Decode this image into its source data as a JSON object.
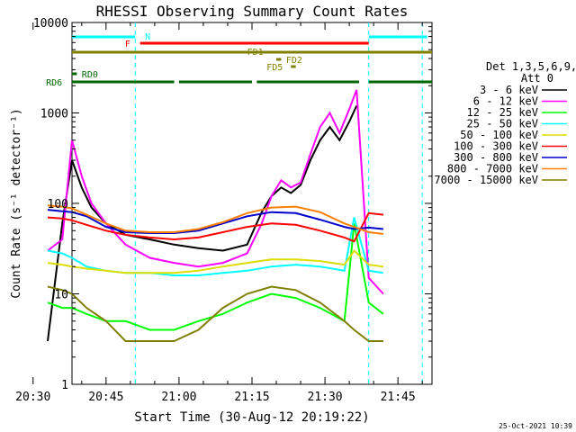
{
  "chart_data": {
    "type": "line",
    "title": "RHESSI Observing Summary Count Rates",
    "xlabel": "Start Time (30-Aug-12 20:19:22)",
    "ylabel": "Count Rate (s⁻¹ detector⁻¹)",
    "yscale": "log",
    "ylim": [
      1,
      10000
    ],
    "xlim_min": [
      19,
      93
    ],
    "x_unit": "minutes after 20:19",
    "x_ticks": [
      {
        "value": 11,
        "label": "20:30"
      },
      {
        "value": 26,
        "label": "20:45"
      },
      {
        "value": 41,
        "label": "21:00"
      },
      {
        "value": 56,
        "label": "21:15"
      },
      {
        "value": 71,
        "label": "21:30"
      },
      {
        "value": 86,
        "label": "21:45"
      }
    ],
    "y_ticks": [
      {
        "value": 1,
        "label": "1"
      },
      {
        "value": 10,
        "label": "10"
      },
      {
        "value": 100,
        "label": "100"
      },
      {
        "value": 1000,
        "label": "1000"
      },
      {
        "value": 10000,
        "label": "10000"
      }
    ],
    "legend": {
      "placement": "right",
      "header": [
        "Det 1,3,5,6,9,",
        "Att 0"
      ]
    },
    "series": [
      {
        "name": "3 - 6 keV",
        "color": "#000000",
        "x": [
          14,
          17,
          19,
          21,
          23,
          26,
          30,
          35,
          40,
          45,
          50,
          55,
          58,
          60,
          62,
          64,
          66,
          68,
          70,
          72,
          74,
          76,
          77.5
        ],
        "y": [
          3,
          60,
          300,
          150,
          90,
          60,
          45,
          40,
          35,
          32,
          30,
          35,
          80,
          120,
          150,
          130,
          160,
          300,
          500,
          700,
          500,
          800,
          1200
        ]
      },
      {
        "name": "6 - 12 keV",
        "color": "#ff00ff",
        "x": [
          14,
          17,
          19,
          21,
          23,
          26,
          30,
          35,
          40,
          45,
          50,
          55,
          58,
          60,
          62,
          64,
          66,
          68,
          70,
          72,
          74,
          76,
          77.5,
          80,
          83
        ],
        "y": [
          30,
          40,
          500,
          200,
          100,
          60,
          35,
          25,
          22,
          20,
          22,
          28,
          60,
          120,
          180,
          150,
          170,
          350,
          700,
          1000,
          600,
          1100,
          1800,
          15,
          10
        ]
      },
      {
        "name": "12 - 25 keV",
        "color": "#00ff00",
        "x": [
          14,
          17,
          19,
          22,
          26,
          30,
          35,
          40,
          45,
          50,
          55,
          60,
          65,
          70,
          75,
          77,
          80,
          83
        ],
        "y": [
          8,
          7,
          7,
          6,
          5,
          5,
          4,
          4,
          5,
          6,
          8,
          10,
          9,
          7,
          5,
          60,
          8,
          6
        ]
      },
      {
        "name": "25 - 50 keV",
        "color": "#00ffff",
        "x": [
          14,
          17,
          19,
          22,
          26,
          30,
          35,
          40,
          45,
          50,
          55,
          60,
          65,
          70,
          75,
          77,
          80,
          83
        ],
        "y": [
          30,
          28,
          25,
          20,
          18,
          17,
          17,
          16,
          16,
          17,
          18,
          20,
          21,
          20,
          18,
          70,
          18,
          17
        ]
      },
      {
        "name": "50 - 100 keV",
        "color": "#dddd00",
        "x": [
          14,
          17,
          19,
          22,
          26,
          30,
          35,
          40,
          45,
          50,
          55,
          60,
          65,
          70,
          75,
          77,
          80,
          83
        ],
        "y": [
          22,
          21,
          20,
          19,
          18,
          17,
          17,
          17,
          18,
          20,
          22,
          24,
          24,
          23,
          21,
          30,
          21,
          20
        ]
      },
      {
        "name": "100 - 300 keV",
        "color": "#ff0000",
        "x": [
          14,
          17,
          19,
          22,
          26,
          30,
          35,
          40,
          45,
          50,
          55,
          60,
          65,
          70,
          75,
          77,
          80,
          83
        ],
        "y": [
          70,
          68,
          65,
          58,
          50,
          45,
          42,
          40,
          42,
          48,
          55,
          60,
          58,
          50,
          42,
          38,
          78,
          75
        ]
      },
      {
        "name": "300 - 800 keV",
        "color": "#0000cc",
        "x": [
          14,
          17,
          19,
          22,
          26,
          30,
          35,
          40,
          45,
          50,
          55,
          60,
          65,
          70,
          75,
          77,
          80,
          83
        ],
        "y": [
          85,
          82,
          80,
          72,
          55,
          48,
          47,
          47,
          50,
          60,
          72,
          80,
          78,
          66,
          55,
          52,
          54,
          52
        ]
      },
      {
        "name": "800 - 7000 keV",
        "color": "#ff8000",
        "x": [
          14,
          17,
          19,
          22,
          26,
          30,
          35,
          40,
          45,
          50,
          55,
          60,
          65,
          70,
          75,
          77,
          80,
          83
        ],
        "y": [
          95,
          92,
          88,
          75,
          60,
          50,
          48,
          48,
          52,
          62,
          78,
          90,
          92,
          80,
          60,
          55,
          48,
          46
        ]
      },
      {
        "name": "7000 - 15000 keV",
        "color": "#808000",
        "x": [
          14,
          17,
          19,
          22,
          26,
          30,
          35,
          40,
          45,
          50,
          55,
          60,
          65,
          70,
          75,
          77,
          80,
          83
        ],
        "y": [
          12,
          11,
          10,
          7,
          5,
          3,
          3,
          3,
          4,
          7,
          10,
          12,
          11,
          8,
          5,
          4,
          3,
          3
        ]
      }
    ],
    "flag_bars": [
      {
        "label": "N",
        "color": "#00ffff",
        "segments": [
          [
            19,
            32
          ],
          [
            80,
            92
          ]
        ]
      },
      {
        "label": "F",
        "color": "#ff0000",
        "segments": [
          [
            33,
            80
          ]
        ]
      },
      {
        "label": "FD1",
        "color": "#808000",
        "segments": [
          [
            19,
            93
          ]
        ]
      },
      {
        "label": "FD2",
        "color": "#808000",
        "segments": [
          [
            61,
            62
          ]
        ]
      },
      {
        "label": "FD5",
        "color": "#808000",
        "segments": [
          [
            64,
            65
          ]
        ]
      },
      {
        "label": "RD0",
        "color": "#006600",
        "segments": [
          [
            19,
            20
          ]
        ]
      },
      {
        "label": "RD6",
        "color": "#006600",
        "segments": [
          [
            19,
            40
          ],
          [
            41,
            56
          ],
          [
            57,
            78
          ],
          [
            80,
            93
          ]
        ]
      }
    ],
    "vlines": [
      {
        "x": 32,
        "color": "#00ffff"
      },
      {
        "x": 80,
        "color": "#00ffff"
      },
      {
        "x": 91,
        "color": "#00ffff"
      }
    ]
  },
  "timestamp": "25-Oct-2021 10:39"
}
